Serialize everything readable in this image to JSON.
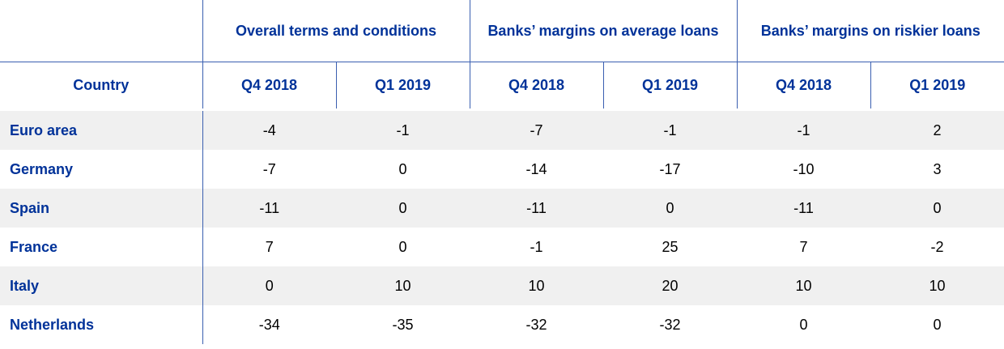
{
  "table": {
    "groups": [
      "Overall terms and conditions",
      "Banks’ margins on average loans",
      "Banks’ margins on riskier loans"
    ],
    "subheaders": [
      "Country",
      "Q4 2018",
      "Q1 2019",
      "Q4 2018",
      "Q1 2019",
      "Q4 2018",
      "Q1 2019"
    ],
    "rows": [
      {
        "country": "Euro area",
        "values": [
          -4,
          -1,
          -7,
          -1,
          -1,
          2
        ]
      },
      {
        "country": "Germany",
        "values": [
          -7,
          0,
          -14,
          -17,
          -10,
          3
        ]
      },
      {
        "country": "Spain",
        "values": [
          -11,
          0,
          -11,
          0,
          -11,
          0
        ]
      },
      {
        "country": "France",
        "values": [
          7,
          0,
          -1,
          25,
          7,
          -2
        ]
      },
      {
        "country": "Italy",
        "values": [
          0,
          10,
          10,
          20,
          10,
          10
        ]
      },
      {
        "country": "Netherlands",
        "values": [
          -34,
          -35,
          -32,
          -32,
          0,
          0
        ]
      }
    ]
  }
}
